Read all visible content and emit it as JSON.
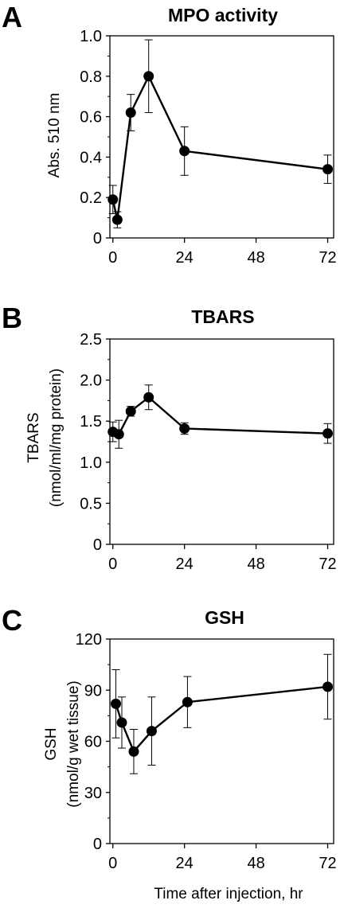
{
  "figure": {
    "x_axis_label": "Time after injection, hr"
  },
  "chart_data": [
    {
      "type": "line",
      "panel_label": "A",
      "title": "MPO activity",
      "ylabel": "Abs. 510 nm",
      "ylabel2": "",
      "xlim": [
        -1,
        74
      ],
      "ylim": [
        0,
        1.0
      ],
      "x_ticks": [
        0,
        24,
        48,
        72
      ],
      "y_ticks": [
        "0",
        "0.2",
        "0.4",
        "0.6",
        "0.8",
        "1.0"
      ],
      "series": [
        {
          "x": [
            0,
            1.5,
            6,
            12,
            24,
            72
          ],
          "y": [
            0.19,
            0.09,
            0.62,
            0.8,
            0.43,
            0.34
          ],
          "err": [
            0.07,
            0.04,
            0.09,
            0.18,
            0.12,
            0.07
          ]
        }
      ]
    },
    {
      "type": "line",
      "panel_label": "B",
      "title": "TBARS",
      "ylabel": "TBARS",
      "ylabel2": "(nmol/ml/mg protein)",
      "xlim": [
        -1,
        74
      ],
      "ylim": [
        0,
        2.5
      ],
      "x_ticks": [
        0,
        24,
        48,
        72
      ],
      "y_ticks": [
        "0",
        "0.5",
        "1.0",
        "1.5",
        "2.0",
        "2.5"
      ],
      "series": [
        {
          "x": [
            0,
            2,
            6,
            12,
            24,
            72
          ],
          "y": [
            1.37,
            1.34,
            1.62,
            1.79,
            1.41,
            1.35
          ],
          "err": [
            0.12,
            0.17,
            0.06,
            0.15,
            0.07,
            0.12
          ]
        }
      ]
    },
    {
      "type": "line",
      "panel_label": "C",
      "title": "GSH",
      "ylabel": "GSH",
      "ylabel2": "(nmol/g wet tissue)",
      "xlim": [
        -1,
        74
      ],
      "ylim": [
        0,
        120
      ],
      "x_ticks": [
        0,
        24,
        48,
        72
      ],
      "y_ticks": [
        "0",
        "30",
        "60",
        "90",
        "120"
      ],
      "series": [
        {
          "x": [
            1,
            3,
            7,
            13,
            25,
            72
          ],
          "y": [
            82,
            71,
            54,
            66,
            83,
            92
          ],
          "err": [
            20,
            15,
            13,
            20,
            15,
            19
          ]
        }
      ]
    }
  ]
}
